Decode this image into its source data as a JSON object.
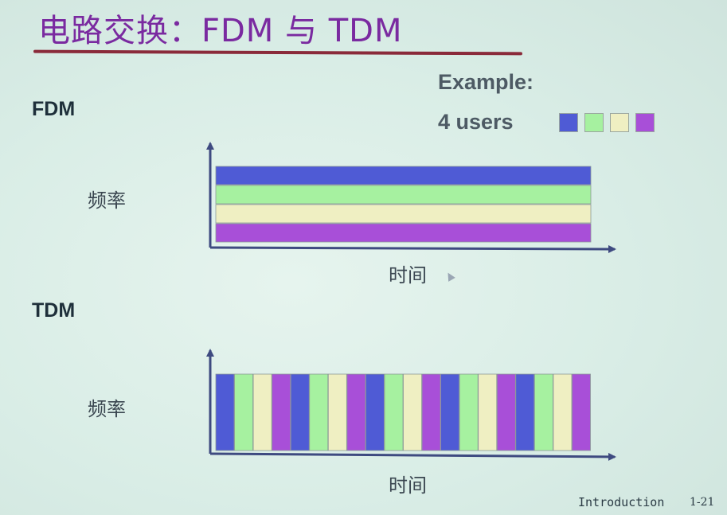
{
  "title": "电路交换：FDM 与 TDM",
  "fdm_label": "FDM",
  "tdm_label": "TDM",
  "example": {
    "heading": "Example:",
    "users_text": "4 users",
    "user_colors": [
      "#4f5bd5",
      "#a6f1a0",
      "#efefc2",
      "#a84fd8"
    ]
  },
  "fdm_diagram": {
    "y_axis_label": "频率",
    "x_axis_label": "时间"
  },
  "tdm_diagram": {
    "y_axis_label": "频率",
    "x_axis_label": "时间",
    "slot_user_sequence": [
      0,
      1,
      2,
      3,
      0,
      1,
      2,
      3,
      0,
      1,
      2,
      3,
      0,
      1,
      2,
      3,
      0,
      1,
      2,
      3
    ]
  },
  "footer": {
    "section": "Introduction",
    "page": "1-21"
  }
}
